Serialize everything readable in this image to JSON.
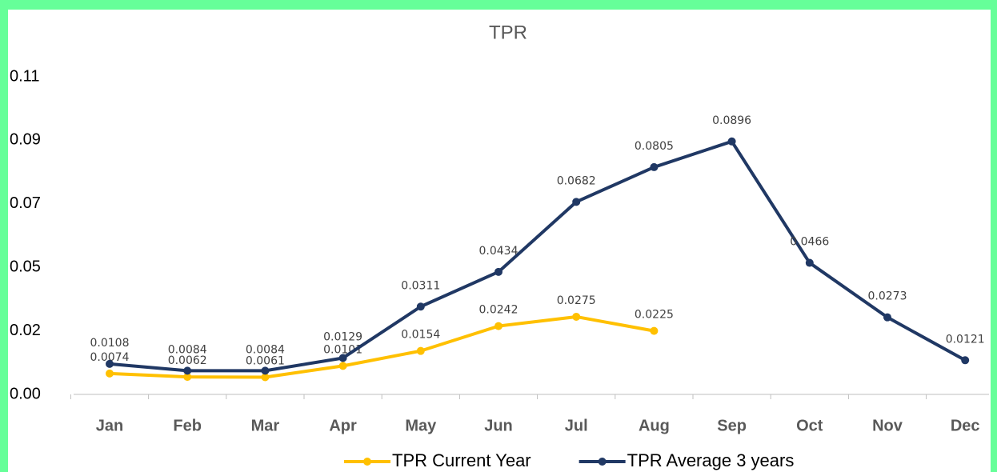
{
  "chart_data": {
    "type": "line",
    "title": "TPR",
    "categories": [
      "Jan",
      "Feb",
      "Mar",
      "Apr",
      "May",
      "Jun",
      "Jul",
      "Aug",
      "Sep",
      "Oct",
      "Nov",
      "Dec"
    ],
    "series": [
      {
        "name": "TPR Current Year",
        "color": "#ffc000",
        "values": [
          0.0074,
          0.0062,
          0.0061,
          0.0101,
          0.0154,
          0.0242,
          0.0275,
          0.0225,
          null,
          null,
          null,
          null
        ]
      },
      {
        "name": "TPR Average 3 years",
        "color": "#203864",
        "values": [
          0.0108,
          0.0084,
          0.0084,
          0.0129,
          0.0311,
          0.0434,
          0.0682,
          0.0805,
          0.0896,
          0.0466,
          0.0273,
          0.0121
        ]
      }
    ],
    "ylim": [
      0,
      0.1125
    ],
    "yticks": [
      {
        "value": 0,
        "label": "0.00"
      },
      {
        "value": 0.0225,
        "label": "0.02"
      },
      {
        "value": 0.045,
        "label": "0.05"
      },
      {
        "value": 0.0675,
        "label": "0.07"
      },
      {
        "value": 0.09,
        "label": "0.09"
      },
      {
        "value": 0.1125,
        "label": "0.11"
      }
    ],
    "grid": false,
    "legend": "bottom"
  }
}
